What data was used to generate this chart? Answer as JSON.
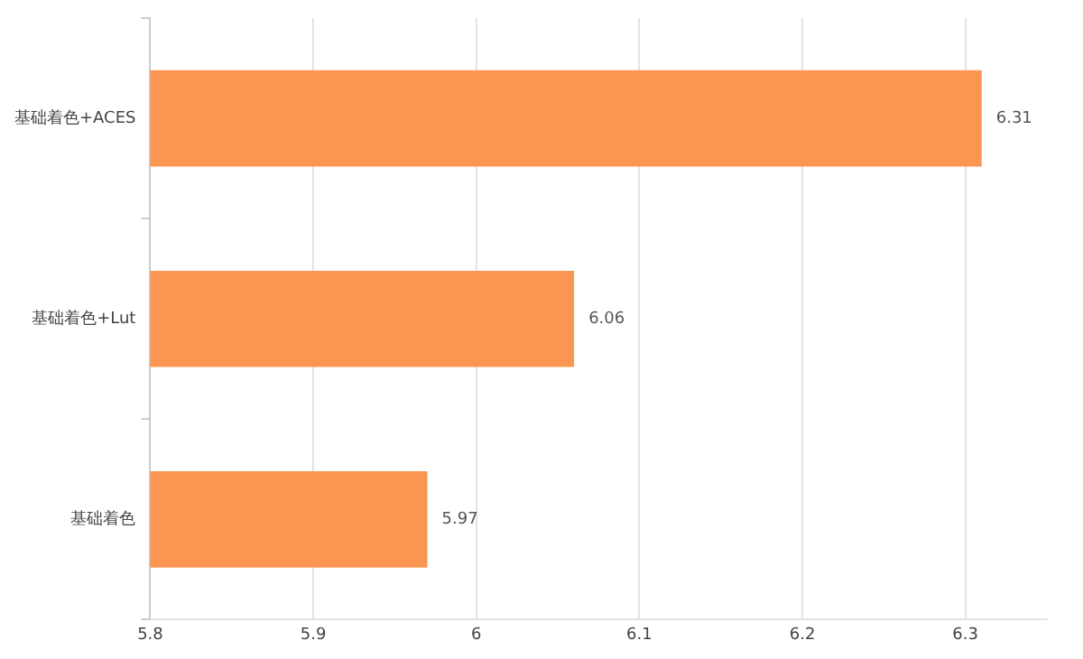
{
  "chart_data": {
    "type": "bar",
    "orientation": "horizontal",
    "categories": [
      "基础着色+ACES",
      "基础着色+Lut",
      "基础着色"
    ],
    "values": [
      6.31,
      6.06,
      5.97
    ],
    "color": "#fa9652",
    "xlim": [
      5.8,
      6.35
    ],
    "xticks": [
      5.8,
      5.9,
      6,
      6.1,
      6.2,
      6.3
    ],
    "grid": "x",
    "data_labels": true,
    "legend": false
  }
}
